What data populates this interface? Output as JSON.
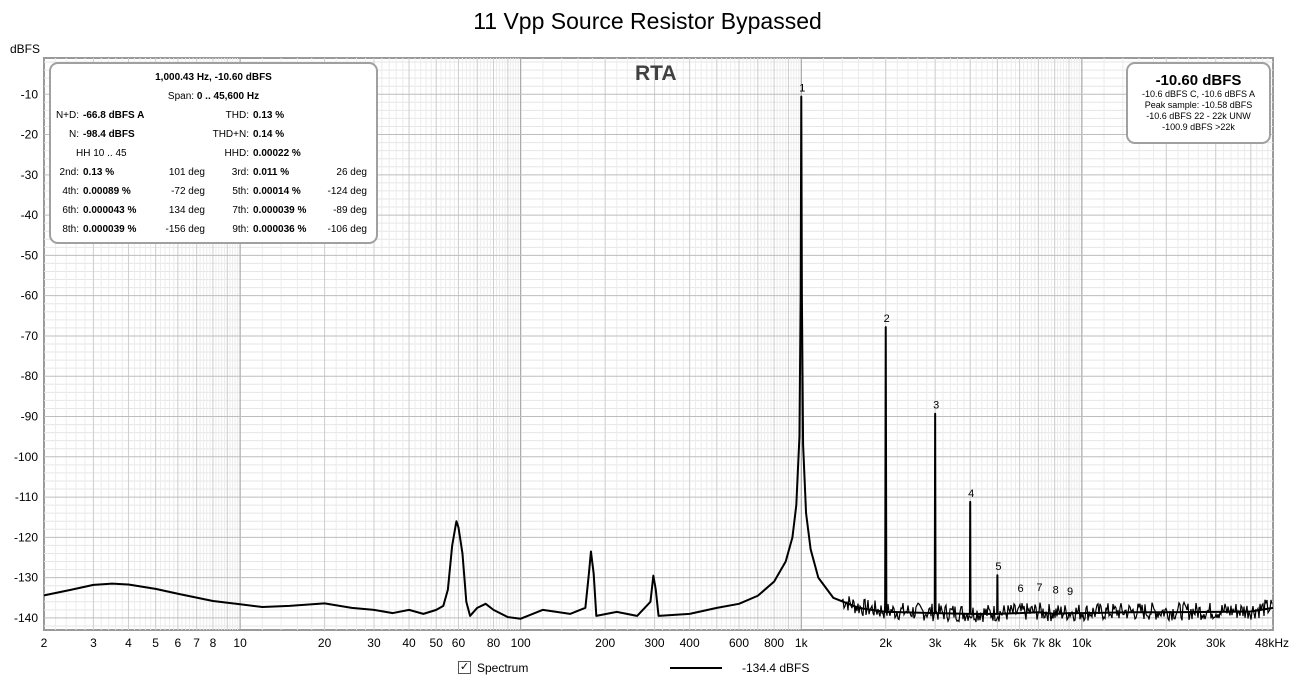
{
  "chart_data": {
    "type": "line",
    "title": "11 Vpp Source Resistor Bypassed",
    "ylabel": "dBFS",
    "xlabel": "",
    "x_scale": "log",
    "xlim": [
      2,
      48000
    ],
    "ylim": [
      -143,
      -1
    ],
    "grid": true,
    "y_ticks": [
      -10,
      -20,
      -30,
      -40,
      -50,
      -60,
      -70,
      -80,
      -90,
      -100,
      -110,
      -120,
      -130,
      -140
    ],
    "y_tick_labels": [
      "-10",
      "-20",
      "-30",
      "-40",
      "-50",
      "-60",
      "-70",
      "-80",
      "-90",
      "-100",
      "-110",
      "-120",
      "-130",
      "-140"
    ],
    "x_ticks": [
      2,
      3,
      4,
      5,
      6,
      7,
      8,
      10,
      20,
      30,
      40,
      50,
      60,
      80,
      100,
      200,
      300,
      400,
      600,
      800,
      1000,
      2000,
      3000,
      4000,
      5000,
      6000,
      7000,
      8000,
      10000,
      20000,
      30000,
      48000
    ],
    "x_tick_labels": [
      "2",
      "3",
      "4",
      "5",
      "6",
      "7",
      "8",
      "10",
      "20",
      "30",
      "40",
      "50",
      "60",
      "80",
      "100",
      "200",
      "300",
      "400",
      "600",
      "800",
      "1k",
      "2k",
      "3k",
      "4k",
      "5k",
      "6k",
      "7k",
      "8k",
      "10k",
      "20k",
      "30k",
      "48kHz"
    ],
    "series": [
      {
        "name": "Spectrum",
        "color": "#000000",
        "points": [
          [
            2,
            -134.4
          ],
          [
            2.5,
            -133.0
          ],
          [
            3,
            -131.8
          ],
          [
            3.5,
            -131.5
          ],
          [
            4,
            -131.7
          ],
          [
            5,
            -132.8
          ],
          [
            6,
            -134.0
          ],
          [
            8,
            -135.8
          ],
          [
            10,
            -136.6
          ],
          [
            12,
            -137.3
          ],
          [
            15,
            -137.0
          ],
          [
            20,
            -136.4
          ],
          [
            25,
            -137.5
          ],
          [
            30,
            -138.0
          ],
          [
            35,
            -138.8
          ],
          [
            40,
            -138.0
          ],
          [
            45,
            -139.0
          ],
          [
            50,
            -138.0
          ],
          [
            53,
            -137.0
          ],
          [
            55,
            -133.0
          ],
          [
            57,
            -122.0
          ],
          [
            59,
            -116.0
          ],
          [
            60,
            -117.5
          ],
          [
            62,
            -124.0
          ],
          [
            64,
            -136.0
          ],
          [
            66,
            -139.5
          ],
          [
            70,
            -137.5
          ],
          [
            75,
            -136.5
          ],
          [
            80,
            -138.0
          ],
          [
            90,
            -139.8
          ],
          [
            100,
            -140.2
          ],
          [
            120,
            -138.0
          ],
          [
            150,
            -139.0
          ],
          [
            170,
            -137.5
          ],
          [
            175,
            -129.0
          ],
          [
            178,
            -123.5
          ],
          [
            182,
            -129.0
          ],
          [
            186,
            -139.5
          ],
          [
            220,
            -138.5
          ],
          [
            260,
            -139.5
          ],
          [
            290,
            -136.0
          ],
          [
            297,
            -129.5
          ],
          [
            303,
            -133.0
          ],
          [
            310,
            -139.5
          ],
          [
            400,
            -139.0
          ],
          [
            500,
            -137.5
          ],
          [
            600,
            -136.5
          ],
          [
            700,
            -134.5
          ],
          [
            800,
            -131.0
          ],
          [
            880,
            -126.0
          ],
          [
            930,
            -120.0
          ],
          [
            960,
            -112.0
          ],
          [
            985,
            -95.0
          ],
          [
            995,
            -60.0
          ],
          [
            1000,
            -10.6
          ],
          [
            1005,
            -60.0
          ],
          [
            1015,
            -97.0
          ],
          [
            1040,
            -114.0
          ],
          [
            1080,
            -123.0
          ],
          [
            1150,
            -130.0
          ],
          [
            1300,
            -135.0
          ],
          [
            1600,
            -137.5
          ],
          [
            1990,
            -138.5
          ],
          [
            2000,
            -67.8
          ],
          [
            2010,
            -138.5
          ],
          [
            2990,
            -138.8
          ],
          [
            3000,
            -89.3
          ],
          [
            3010,
            -138.8
          ],
          [
            3990,
            -139.0
          ],
          [
            4000,
            -111.2
          ],
          [
            4010,
            -139.0
          ],
          [
            4990,
            -139.0
          ],
          [
            5000,
            -129.4
          ],
          [
            5010,
            -139.0
          ],
          [
            6000,
            -138.8
          ],
          [
            7000,
            -138.6
          ],
          [
            8000,
            -139.0
          ],
          [
            9000,
            -138.8
          ],
          [
            10000,
            -138.8
          ],
          [
            15000,
            -138.6
          ],
          [
            20000,
            -138.6
          ],
          [
            30000,
            -138.5
          ],
          [
            40000,
            -138.4
          ],
          [
            48000,
            -137.5
          ]
        ]
      }
    ],
    "harmonic_labels": [
      {
        "label": "1",
        "x": 1000,
        "y": -10.6
      },
      {
        "label": "2",
        "x": 2000,
        "y": -67.8
      },
      {
        "label": "3",
        "x": 3000,
        "y": -89.3
      },
      {
        "label": "4",
        "x": 4000,
        "y": -111.2
      },
      {
        "label": "5",
        "x": 5000,
        "y": -129.4
      },
      {
        "label": "6",
        "x": 6000,
        "y": -134.8
      },
      {
        "label": "7",
        "x": 7000,
        "y": -134.5
      },
      {
        "label": "8",
        "x": 8000,
        "y": -135.2
      },
      {
        "label": "9",
        "x": 9000,
        "y": -135.5
      }
    ],
    "legend": {
      "checked": true,
      "label": "Spectrum",
      "value": "-134.4 dBFS",
      "placement": "bottom"
    }
  },
  "rta_label": "RTA",
  "stats": {
    "header": "1,000.43 Hz, -10.60 dBFS",
    "span_label": "Span:",
    "span_value": "0 .. 45,600 Hz",
    "nd_label": "N+D:",
    "nd_value": "-66.8 dBFS A",
    "thd_label": "THD:",
    "thd_value": "0.13 %",
    "n_label": "N:",
    "n_value": "-98.4 dBFS",
    "thdn_label": "THD+N:",
    "thdn_value": "0.14 %",
    "hh_label": "HH 10 .. 45",
    "hhd_label": "HHD:",
    "hhd_value": "0.00022 %",
    "harmonics": [
      {
        "label": "2nd:",
        "value": "0.13 %",
        "phase": "101 deg",
        "label2": "3rd:",
        "value2": "0.011 %",
        "phase2": "26 deg"
      },
      {
        "label": "4th:",
        "value": "0.00089 %",
        "phase": "-72 deg",
        "label2": "5th:",
        "value2": "0.00014 %",
        "phase2": "-124 deg"
      },
      {
        "label": "6th:",
        "value": "0.000043 %",
        "phase": "134 deg",
        "label2": "7th:",
        "value2": "0.000039 %",
        "phase2": "-89 deg"
      },
      {
        "label": "8th:",
        "value": "0.000039 %",
        "phase": "-156 deg",
        "label2": "9th:",
        "value2": "0.000036 %",
        "phase2": "-106 deg"
      }
    ]
  },
  "level": {
    "main": "-10.60 dBFS",
    "lines": [
      "-10.6 dBFS C, -10.6 dBFS A",
      "Peak sample: -10.58 dBFS",
      "-10.6 dBFS 22 - 22k UNW",
      "-100.9 dBFS >22k"
    ]
  }
}
